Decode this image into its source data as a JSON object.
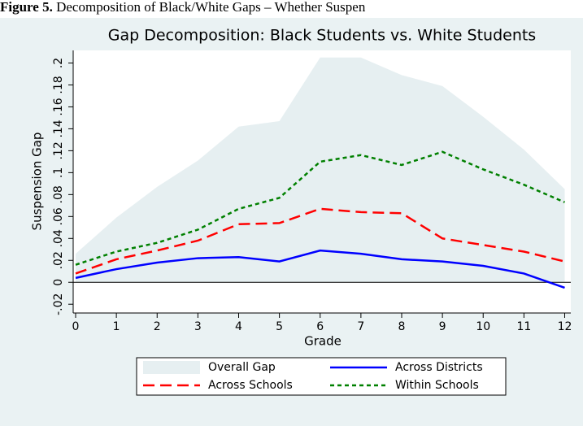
{
  "caption": {
    "label": "Figure 5.",
    "text": "Decomposition of Black/White Gaps – Whether Suspen"
  },
  "chart_data": {
    "type": "line",
    "title": "Gap Decomposition: Black Students vs. White Students",
    "x_label": "Grade",
    "y_label": "Suspension Gap",
    "x": [
      0,
      1,
      2,
      3,
      4,
      5,
      6,
      7,
      8,
      9,
      10,
      11,
      12
    ],
    "xlim": [
      -0.06,
      12.15
    ],
    "xticks": [
      0,
      1,
      2,
      3,
      4,
      5,
      6,
      7,
      8,
      9,
      10,
      11,
      12
    ],
    "ylim": [
      -0.028,
      0.2115
    ],
    "yticks": [
      {
        "value": -0.02,
        "label": "-.02"
      },
      0,
      {
        "value": 0.02,
        "label": ".02"
      },
      {
        "value": 0.04,
        "label": ".04"
      },
      {
        "value": 0.06,
        "label": ".06"
      },
      {
        "value": 0.08,
        "label": ".08"
      },
      {
        "value": 0.1,
        "label": ".1"
      },
      {
        "value": 0.12,
        "label": ".12"
      },
      {
        "value": 0.14,
        "label": ".14"
      },
      {
        "value": 0.16,
        "label": ".16"
      },
      {
        "value": 0.18,
        "label": ".18"
      },
      {
        "value": 0.2,
        "label": ".2"
      }
    ],
    "yline": 0,
    "series": [
      {
        "name": "Overall Gap",
        "style": "area",
        "color": "#e6eff1",
        "values": [
          0.026,
          0.059,
          0.087,
          0.111,
          0.142,
          0.147,
          0.205,
          0.205,
          0.189,
          0.179,
          0.151,
          0.121,
          0.085
        ]
      },
      {
        "name": "Across Districts",
        "style": "solid",
        "color": "#0000ff",
        "values": [
          0.004,
          0.012,
          0.018,
          0.022,
          0.023,
          0.019,
          0.029,
          0.026,
          0.021,
          0.019,
          0.015,
          0.008,
          -0.005
        ]
      },
      {
        "name": "Across Schools",
        "style": "dash",
        "color": "#ff0000",
        "values": [
          0.008,
          0.021,
          0.029,
          0.038,
          0.053,
          0.054,
          0.067,
          0.064,
          0.063,
          0.04,
          0.034,
          0.028,
          0.019
        ]
      },
      {
        "name": "Within Schools",
        "style": "dot",
        "color": "#008000",
        "values": [
          0.016,
          0.028,
          0.036,
          0.048,
          0.067,
          0.077,
          0.11,
          0.116,
          0.107,
          0.119,
          0.103,
          0.089,
          0.073
        ]
      }
    ]
  }
}
